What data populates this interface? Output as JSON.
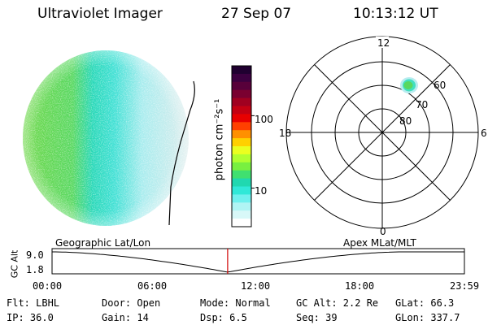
{
  "header": {
    "instrument": "Ultraviolet Imager",
    "date": "27 Sep 07",
    "time": "10:13:12 UT"
  },
  "colorbar": {
    "label": "photon cm⁻²s⁻¹",
    "ticks": [
      "100",
      "10"
    ],
    "colors": [
      "#200030",
      "#3c0040",
      "#58003a",
      "#7a0030",
      "#a00020",
      "#c40012",
      "#e80000",
      "#ff4000",
      "#ff9000",
      "#ffd000",
      "#eaff20",
      "#b0ff30",
      "#78f040",
      "#40e070",
      "#20d8b0",
      "#30e8d8",
      "#70f0ee",
      "#b0f4f4",
      "#d8f8f8",
      "#ffffff"
    ]
  },
  "polar": {
    "mlt_labels": [
      "12",
      "18",
      "6",
      "0"
    ],
    "lat_labels": [
      "60",
      "70",
      "80"
    ]
  },
  "timeline": {
    "left_label": "Geographic Lat/Lon",
    "right_label": "Apex MLat/MLT",
    "y_label": "GC Alt",
    "y_ticks": [
      "9.0",
      "1.8"
    ],
    "x_ticks": [
      "00:00",
      "06:00",
      "12:00",
      "18:00",
      "23:59"
    ],
    "current_time_hours": 10.22
  },
  "info": {
    "filter": "Flt: LBHL",
    "door": "Door: Open",
    "mode": "Mode: Normal",
    "gc_alt": "GC Alt: 2.2 Re",
    "glat": "GLat:   66.3",
    "ip": "IP: 36.0",
    "gain": "Gain: 14",
    "dsp": "Dsp:     6.5",
    "seq": "Seq: 39",
    "glon": "GLon: 337.7"
  }
}
